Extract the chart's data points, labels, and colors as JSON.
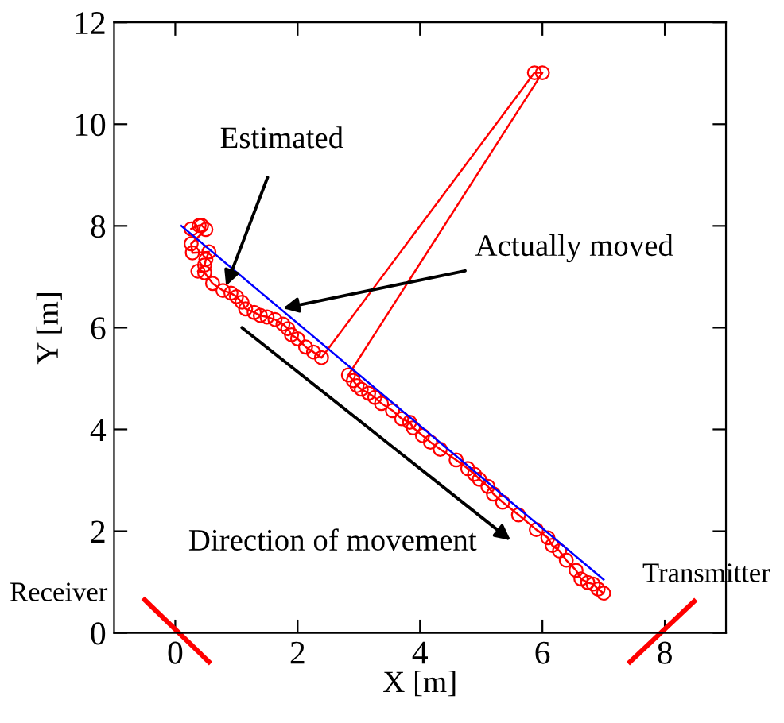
{
  "chart_data": {
    "type": "line",
    "xlabel": "X [m]",
    "ylabel": "Y [m]",
    "xlim": [
      -1,
      9
    ],
    "xticks": [
      0,
      2,
      4,
      6,
      8
    ],
    "ylim": [
      0,
      12
    ],
    "yticks": [
      0,
      2,
      4,
      6,
      8,
      10,
      12
    ],
    "grid": false,
    "legend": false,
    "series": [
      {
        "color": "#ff0000",
        "marker": "circle",
        "x": [
          0.26,
          0.39,
          0.43,
          0.5,
          0.26,
          0.28,
          0.55,
          0.5,
          0.48,
          0.37,
          0.48,
          0.61,
          0.78,
          0.91,
          1.0,
          1.09,
          1.15,
          1.29,
          1.39,
          1.5,
          1.63,
          1.76,
          1.84,
          1.9,
          2.0,
          2.13,
          2.26,
          2.39,
          5.87,
          6.0,
          2.83,
          2.91,
          2.97,
          3.04,
          3.16,
          3.26,
          3.37,
          3.55,
          3.7,
          3.83,
          3.89,
          4.04,
          4.17,
          4.33,
          4.59,
          4.78,
          4.89,
          4.97,
          5.11,
          5.2,
          5.35,
          5.61,
          5.9,
          6.09,
          6.16,
          6.28,
          6.39,
          6.55,
          6.63,
          6.74,
          6.83,
          6.91,
          7.0
        ],
        "values": [
          7.94,
          8.01,
          8.01,
          7.93,
          7.65,
          7.47,
          7.49,
          7.34,
          7.23,
          7.11,
          7.08,
          6.87,
          6.73,
          6.68,
          6.61,
          6.5,
          6.37,
          6.3,
          6.24,
          6.21,
          6.16,
          6.07,
          5.98,
          5.86,
          5.78,
          5.62,
          5.52,
          5.41,
          11.01,
          11.01,
          5.07,
          4.96,
          4.86,
          4.79,
          4.71,
          4.63,
          4.51,
          4.37,
          4.21,
          4.14,
          4.03,
          3.88,
          3.75,
          3.61,
          3.4,
          3.23,
          3.12,
          3.02,
          2.88,
          2.73,
          2.57,
          2.32,
          2.03,
          1.87,
          1.72,
          1.61,
          1.43,
          1.23,
          1.06,
          0.99,
          0.96,
          0.86,
          0.78
        ]
      },
      {
        "color": "#0000ff",
        "marker": "none",
        "x": [
          0.1,
          7.0
        ],
        "values": [
          8.0,
          1.05
        ]
      }
    ],
    "annotations": [
      {
        "text": "Estimated",
        "x": 0.83,
        "y": 6.82
      },
      {
        "text": "Actually moved",
        "x": 1.76,
        "y": 6.38
      },
      "Direction of movement",
      "Receiver",
      "Transmitter"
    ]
  }
}
